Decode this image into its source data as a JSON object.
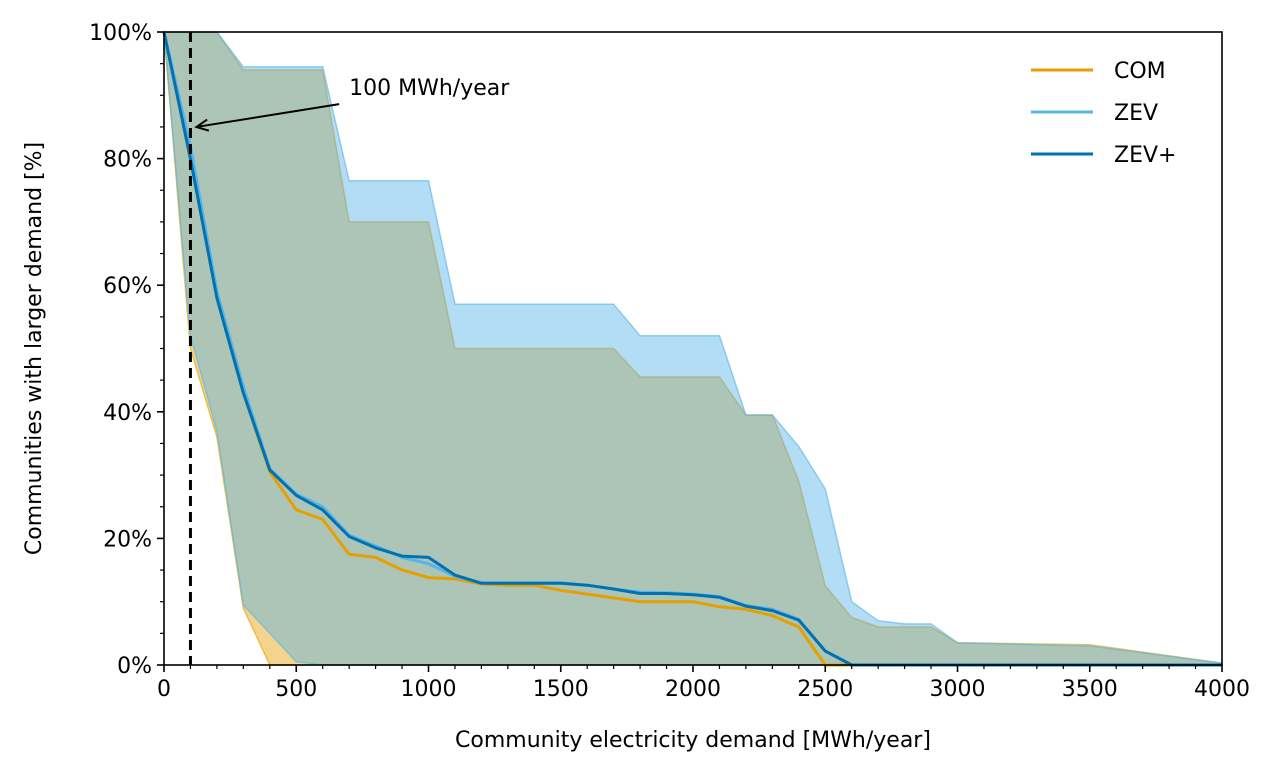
{
  "chart_data": {
    "type": "line",
    "xlabel": "Community electricity demand [MWh/year]",
    "ylabel": "Communities with larger demand [%]",
    "xlim": [
      0,
      4000
    ],
    "ylim": [
      0,
      100
    ],
    "xticks": [
      "0",
      "500",
      "1000",
      "1500",
      "2000",
      "2500",
      "3000",
      "3500",
      "4000"
    ],
    "xtick_values": [
      0,
      500,
      1000,
      1500,
      2000,
      2500,
      3000,
      3500,
      4000
    ],
    "yticks": [
      "0%",
      "20%",
      "40%",
      "60%",
      "80%",
      "100%"
    ],
    "ytick_values": [
      0,
      20,
      40,
      60,
      80,
      100
    ],
    "grid": false,
    "legend_position": "top-right",
    "annotation": {
      "text": "100 MWh/year",
      "x_value": 100,
      "point_value": 85,
      "text_x_value": 700,
      "text_y_value": 90.5
    },
    "reference_line": {
      "x_value": 100,
      "style": "dashed"
    },
    "series": [
      {
        "name": "COM",
        "color": "#e69f00",
        "x": [
          0,
          100,
          200,
          300,
          400,
          500,
          600,
          700,
          800,
          900,
          1000,
          1100,
          1200,
          1300,
          1400,
          1500,
          1600,
          1700,
          1800,
          1900,
          2000,
          2100,
          2200,
          2300,
          2400,
          2500,
          2600,
          2700,
          2800,
          2900,
          3000,
          3500,
          4000
        ],
        "values": [
          100,
          80,
          58,
          43,
          30.5,
          24.5,
          23,
          17.5,
          17,
          15,
          13.8,
          13.6,
          12.8,
          12.6,
          12.6,
          11.8,
          11.2,
          10.6,
          10,
          10,
          10,
          9.2,
          8.8,
          7.8,
          6,
          0,
          0,
          0,
          0,
          0,
          0,
          0,
          0
        ],
        "band_upper": [
          100,
          100,
          100,
          94,
          94,
          94,
          94,
          70,
          70,
          70,
          70,
          50,
          50,
          50,
          50,
          50,
          50,
          50,
          45.5,
          45.5,
          45.5,
          45.5,
          39.5,
          39.5,
          29,
          12.5,
          7.5,
          6,
          6,
          6,
          3.5,
          3.2,
          0.3
        ],
        "band_lower": [
          100,
          50,
          36,
          9,
          0,
          0,
          0,
          0,
          0,
          0,
          0,
          0,
          0,
          0,
          0,
          0,
          0,
          0,
          0,
          0,
          0,
          0,
          0,
          0,
          0,
          0,
          0,
          0,
          0,
          0,
          0,
          0,
          0
        ]
      },
      {
        "name": "ZEV",
        "color": "#56b4e9",
        "x": [
          0,
          100,
          200,
          300,
          400,
          500,
          600,
          700,
          800,
          900,
          1000,
          1100,
          1200,
          1300,
          1400,
          1500,
          1600,
          1700,
          1800,
          1900,
          2000,
          2100,
          2200,
          2300,
          2400,
          2500,
          2600,
          2700,
          2800,
          2900,
          3000,
          3500,
          4000
        ],
        "values": [
          100,
          82,
          59,
          44,
          31,
          27,
          25,
          20.5,
          18.8,
          17,
          16,
          14,
          13,
          13,
          13,
          13,
          12.6,
          12,
          11.5,
          11.4,
          11.2,
          10.8,
          9.4,
          8.8,
          7.2,
          2.2,
          0,
          0,
          0,
          0,
          0,
          0,
          0
        ],
        "band_upper": [
          100,
          100,
          100,
          94.5,
          94.5,
          94.5,
          94.5,
          76.5,
          76.5,
          76.5,
          76.5,
          57,
          57,
          57,
          57,
          57,
          57,
          57,
          52,
          52,
          52,
          52,
          39.5,
          39.5,
          34.5,
          27.8,
          10,
          7,
          6.5,
          6.5,
          3.5,
          3,
          0.3
        ],
        "band_lower": [
          100,
          52,
          37,
          9.5,
          5,
          0.5,
          0,
          0,
          0,
          0,
          0,
          0,
          0,
          0,
          0,
          0,
          0,
          0,
          0,
          0,
          0,
          0,
          0,
          0,
          0,
          0,
          0,
          0,
          0,
          0,
          0,
          0,
          0
        ]
      },
      {
        "name": "ZEV+",
        "color": "#0072b2",
        "x": [
          0,
          100,
          200,
          300,
          400,
          500,
          600,
          700,
          800,
          900,
          1000,
          1100,
          1200,
          1300,
          1400,
          1500,
          1600,
          1700,
          1800,
          1900,
          2000,
          2100,
          2200,
          2300,
          2400,
          2500,
          2600,
          2700,
          2800,
          2900,
          3000,
          3500,
          4000
        ],
        "values": [
          100,
          80,
          58,
          43,
          30.8,
          26.8,
          24.5,
          20.3,
          18.5,
          17.2,
          17,
          14.2,
          12.9,
          12.9,
          12.9,
          12.9,
          12.6,
          12,
          11.3,
          11.3,
          11.1,
          10.7,
          9.3,
          8.6,
          7.1,
          2.2,
          0,
          0,
          0,
          0,
          0,
          0,
          0
        ]
      }
    ]
  }
}
